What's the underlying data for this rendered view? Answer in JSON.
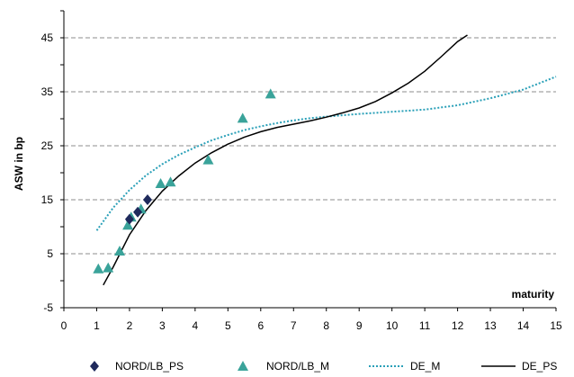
{
  "chart_data": {
    "type": "scatter",
    "ylabel": "ASW in bp",
    "xlabel": "maturity",
    "xlim": [
      0,
      15
    ],
    "ylim": [
      -5,
      50
    ],
    "xticks": [
      0,
      1,
      2,
      3,
      4,
      5,
      6,
      7,
      8,
      9,
      10,
      11,
      12,
      13,
      14,
      15
    ],
    "yticks": [
      -5,
      5,
      15,
      25,
      35,
      45
    ],
    "grid": "horizontal dashed",
    "legend_position": "bottom",
    "series": [
      {
        "name": "NORD/LB_PS",
        "kind": "points",
        "marker": "diamond",
        "color": "#1f2a5c",
        "points": [
          [
            2.0,
            11.4
          ],
          [
            2.25,
            12.7
          ],
          [
            2.55,
            15.0
          ]
        ]
      },
      {
        "name": "NORD/LB_M",
        "kind": "points",
        "marker": "triangle",
        "color": "#3aa39a",
        "points": [
          [
            1.05,
            2.2
          ],
          [
            1.35,
            2.4
          ],
          [
            1.7,
            5.5
          ],
          [
            1.95,
            10.3
          ],
          [
            2.05,
            11.8
          ],
          [
            2.35,
            13.3
          ],
          [
            2.95,
            18.0
          ],
          [
            3.25,
            18.3
          ],
          [
            4.4,
            22.4
          ],
          [
            5.45,
            30.1
          ],
          [
            6.3,
            34.6
          ]
        ]
      },
      {
        "name": "DE_M",
        "kind": "line",
        "style": "dotted",
        "color": "#2aa0b8",
        "points": [
          [
            1.0,
            9.3
          ],
          [
            1.5,
            13.5
          ],
          [
            2.0,
            16.8
          ],
          [
            2.5,
            19.5
          ],
          [
            3.0,
            21.6
          ],
          [
            3.5,
            23.3
          ],
          [
            4.0,
            24.7
          ],
          [
            4.5,
            26.0
          ],
          [
            5.0,
            27.0
          ],
          [
            5.5,
            27.9
          ],
          [
            6.0,
            28.6
          ],
          [
            6.5,
            29.2
          ],
          [
            7.0,
            29.7
          ],
          [
            7.5,
            30.1
          ],
          [
            8.0,
            30.4
          ],
          [
            9.0,
            30.9
          ],
          [
            10.0,
            31.3
          ],
          [
            11.0,
            31.7
          ],
          [
            12.0,
            32.5
          ],
          [
            13.0,
            33.8
          ],
          [
            14.0,
            35.4
          ],
          [
            15.0,
            37.8
          ]
        ]
      },
      {
        "name": "DE_PS",
        "kind": "line",
        "style": "solid",
        "color": "#000000",
        "points": [
          [
            1.2,
            -0.8
          ],
          [
            1.5,
            2.5
          ],
          [
            2.0,
            8.5
          ],
          [
            2.5,
            13.0
          ],
          [
            3.0,
            16.6
          ],
          [
            3.5,
            19.4
          ],
          [
            4.0,
            21.8
          ],
          [
            4.5,
            23.7
          ],
          [
            5.0,
            25.3
          ],
          [
            5.5,
            26.6
          ],
          [
            6.0,
            27.6
          ],
          [
            6.5,
            28.4
          ],
          [
            7.0,
            29.0
          ],
          [
            7.5,
            29.6
          ],
          [
            8.0,
            30.3
          ],
          [
            8.5,
            31.1
          ],
          [
            9.0,
            32.0
          ],
          [
            9.5,
            33.2
          ],
          [
            10.0,
            34.8
          ],
          [
            10.5,
            36.6
          ],
          [
            11.0,
            38.8
          ],
          [
            11.5,
            41.5
          ],
          [
            12.0,
            44.3
          ],
          [
            12.3,
            45.5
          ]
        ]
      }
    ]
  }
}
